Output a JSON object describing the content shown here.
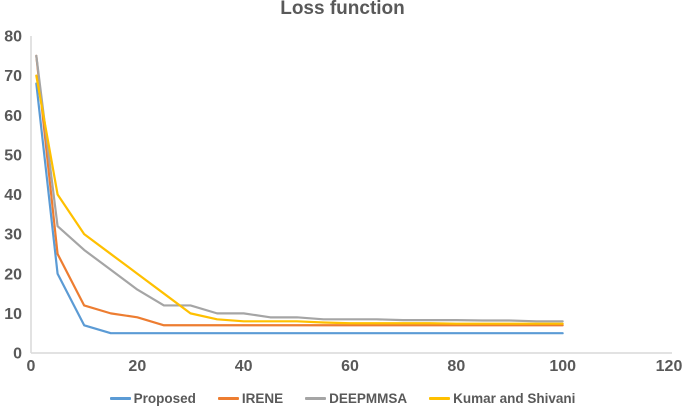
{
  "title": "Loss function",
  "colors": {
    "text": "#595959",
    "axis_line": "#D9D9D9",
    "background": "#FFFFFF"
  },
  "chart_data": {
    "type": "line",
    "title": "Loss function",
    "xlabel": "",
    "ylabel": "",
    "xlim": [
      0,
      120
    ],
    "ylim": [
      0,
      80
    ],
    "x_ticks": [
      0,
      20,
      40,
      60,
      80,
      100,
      120
    ],
    "y_ticks": [
      0,
      10,
      20,
      30,
      40,
      50,
      60,
      70,
      80
    ],
    "grid": false,
    "legend_position": "bottom",
    "x": [
      1,
      5,
      10,
      15,
      20,
      25,
      30,
      35,
      40,
      45,
      50,
      55,
      60,
      65,
      70,
      75,
      80,
      85,
      90,
      95,
      100
    ],
    "series": [
      {
        "name": "Proposed",
        "color": "#5B9BD5",
        "values": [
          68,
          20,
          7,
          5,
          5,
          5,
          5,
          5,
          5,
          5,
          5,
          5,
          5,
          5,
          5,
          5,
          5,
          5,
          5,
          5,
          5
        ]
      },
      {
        "name": "IRENE",
        "color": "#ED7D31",
        "values": [
          75,
          25,
          12,
          10,
          9,
          7,
          7,
          7,
          7,
          7,
          7,
          7,
          7,
          7,
          7,
          7,
          7,
          7,
          7,
          7,
          7
        ]
      },
      {
        "name": "DEEPMMSA",
        "color": "#A5A5A5",
        "values": [
          75,
          32,
          26,
          21,
          16,
          12,
          12,
          10,
          10,
          9,
          9,
          8.5,
          8.5,
          8.5,
          8.3,
          8.3,
          8.3,
          8.2,
          8.2,
          8,
          8
        ]
      },
      {
        "name": "Kumar and Shivani",
        "color": "#FFC000",
        "values": [
          70,
          40,
          30,
          25,
          20,
          15,
          10,
          8.5,
          8,
          8,
          8,
          7.7,
          7.5,
          7.5,
          7.5,
          7.5,
          7.4,
          7.4,
          7.4,
          7.4,
          7.4
        ]
      }
    ]
  }
}
